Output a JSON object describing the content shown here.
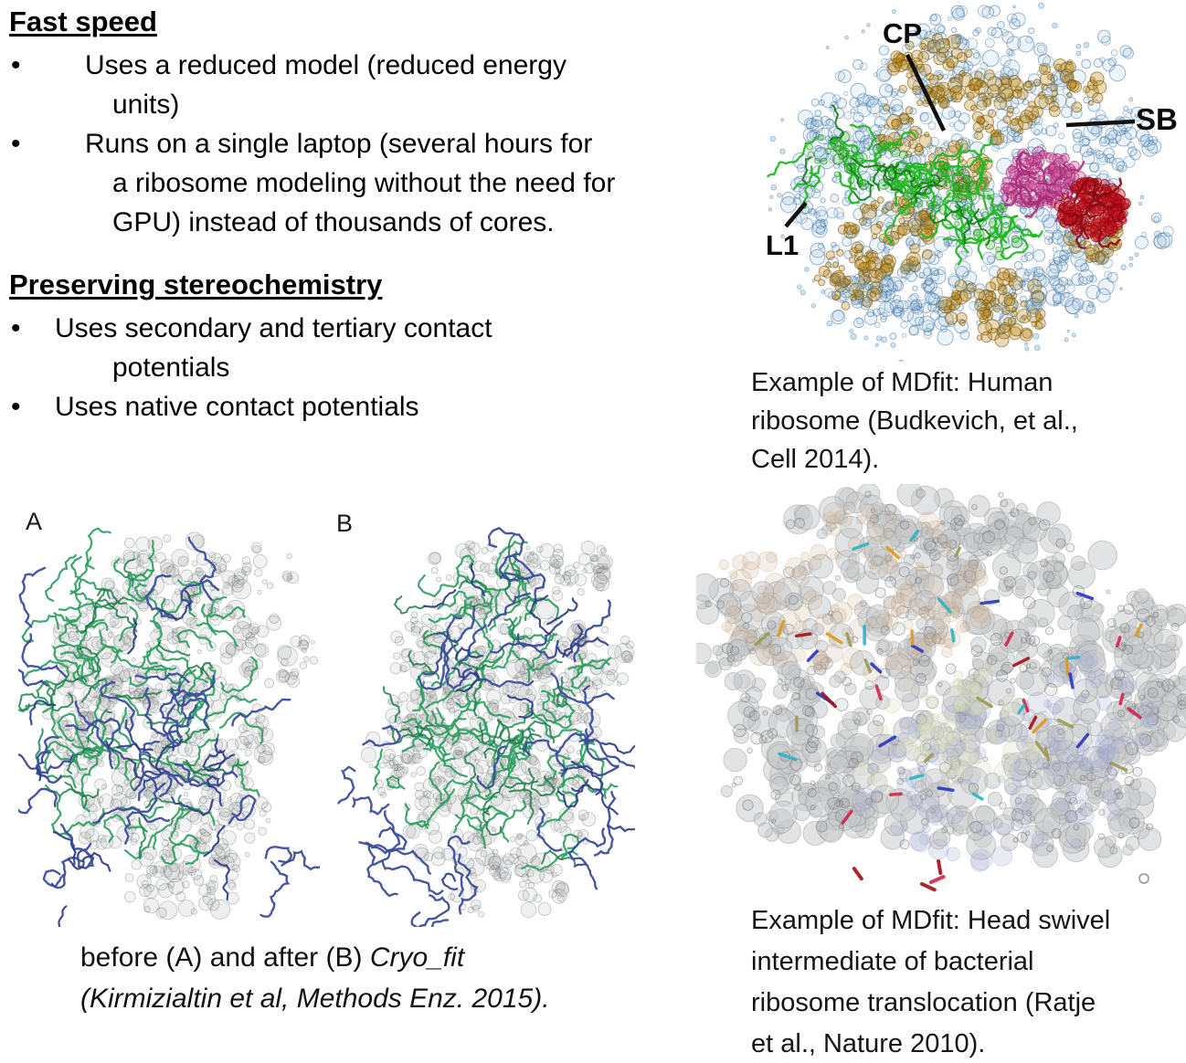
{
  "slide": {
    "bullet_char": "•",
    "sections": [
      {
        "heading": "Fast speed",
        "bullets": [
          {
            "lines": [
              "Uses a reduced model (reduced energy",
              "units)"
            ]
          },
          {
            "lines": [
              "Runs on a single laptop (several hours for",
              "a ribosome modeling without the need for",
              "GPU) instead of thousands of cores."
            ]
          }
        ]
      },
      {
        "heading": "Preserving stereochemistry",
        "bullets": [
          {
            "lines": [
              "Uses secondary and tertiary contact",
              "potentials"
            ]
          },
          {
            "lines": [
              "Uses native contact potentials"
            ]
          }
        ]
      }
    ],
    "figures": {
      "human_ribosome": {
        "labels": {
          "cp": "CP",
          "sb": "SB",
          "l1": "L1"
        },
        "caption_lines": [
          "Example of MDfit: Human",
          "ribosome (Budkevich, et al.,",
          "Cell 2014)."
        ],
        "palette": {
          "mesh_blue": "#8ab6d8",
          "mesh_blue_dark": "#3c6f9e",
          "gold": "#b5820e",
          "gold_dark": "#7a5607",
          "green": "#22b822",
          "green_dark": "#0f7d12",
          "magenta": "#d05a9f",
          "magenta_dark": "#a62e79",
          "red": "#cc1322",
          "red_dark": "#8e0912",
          "leader_line": "#111111"
        }
      },
      "before_after": {
        "label_a": "A",
        "label_b": "B",
        "caption_segments": [
          {
            "text": "before (A) and after (B) ",
            "italic": false
          },
          {
            "text": "Cryo_fit",
            "italic": true
          }
        ],
        "caption_line2": "(Kirmizialtin et al, Methods Enz. 2015).",
        "palette": {
          "density_gray": "#b3b6b8",
          "density_gray_dark": "#5f6366",
          "green": "#2f9e62",
          "green_dark": "#1e7d4b",
          "blue": "#3c4d9b",
          "blue_dark": "#2d3a85"
        }
      },
      "head_swivel": {
        "caption_lines": [
          "Example of MDfit: Head swivel",
          "intermediate of bacterial",
          "ribosome translocation (Ratje",
          "et al., Nature 2010)."
        ],
        "palette": {
          "surface": "#c6c7c9",
          "surface_dark": "#8a8c8f",
          "tan": "#cbb395",
          "blue_tint": "#a9b0cf",
          "pale_green": "#d9dfbf",
          "stick_orange": "#dd9a1c",
          "stick_blue": "#2a35c0",
          "stick_cyan": "#2ab5c5",
          "stick_red": "#d2244e",
          "stick_darkred": "#a31016",
          "stick_olive": "#9a9a55"
        }
      }
    }
  }
}
